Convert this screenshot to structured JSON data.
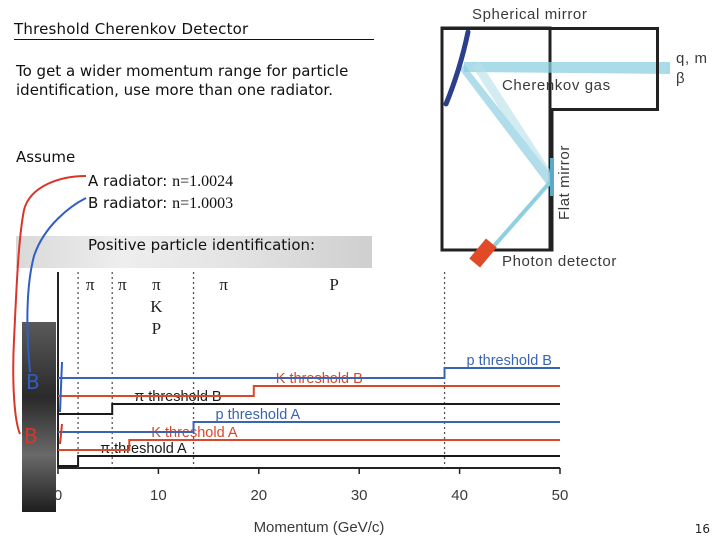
{
  "slide": {
    "title": "Threshold Cherenkov Detector",
    "intro": "To get a wider momentum range  for particle identification, use more than one radiator.",
    "assume": "Assume",
    "radiator_a_prefix": "A radiator:  ",
    "radiator_a_n": "n=1.0024",
    "radiator_b_prefix": "B radiator:  ",
    "radiator_b_n": "n=1.0003",
    "positive_id": "Positive particle identification:",
    "page_number": "16"
  },
  "sketch": {
    "spherical_mirror": "Spherical mirror",
    "cherenkov_gas": "Cherenkov gas",
    "flat_mirror": "Flat mirror",
    "photon_detector": "Photon detector",
    "particle_label_1": "q, m",
    "particle_label_2": "β",
    "colors": {
      "mirror": "#2b3f8c",
      "light": "#8ecfe0",
      "detector": "#e04a26"
    }
  },
  "annotations": {
    "B_mark": "B",
    "A_mark": "B",
    "colors": {
      "blue": "#2f5fc4",
      "red": "#d9362a"
    }
  },
  "chart_data": {
    "type": "line",
    "xlabel": "Momentum (GeV/c)",
    "xticks": [
      "0",
      "10",
      "20",
      "30",
      "40",
      "50"
    ],
    "xlim": [
      0,
      50
    ],
    "region_labels": [
      {
        "x": 3.2,
        "text": "π"
      },
      {
        "x": 6.4,
        "text": "π"
      },
      {
        "x": 9.8,
        "text": "π\nK\nP"
      },
      {
        "x": 16.5,
        "text": "π"
      },
      {
        "x": 27.5,
        "text": "P"
      }
    ],
    "region_dividers": [
      2.0,
      5.4,
      13.5,
      38.5
    ],
    "series": [
      {
        "name": "π threshold A",
        "threshold": 2.0,
        "color": "#1a1a1a",
        "level": 1
      },
      {
        "name": "K threshold A",
        "threshold": 7.1,
        "color": "#d8482a",
        "level": 2
      },
      {
        "name": "p threshold A",
        "threshold": 13.5,
        "color": "#3a63b3",
        "level": 3
      },
      {
        "name": "π threshold B",
        "threshold": 5.4,
        "color": "#1a1a1a",
        "level": 4
      },
      {
        "name": "K threshold B",
        "threshold": 19.5,
        "color": "#d8482a",
        "level": 5
      },
      {
        "name": "p threshold B",
        "threshold": 38.5,
        "color": "#3a63b3",
        "level": 6
      }
    ]
  }
}
